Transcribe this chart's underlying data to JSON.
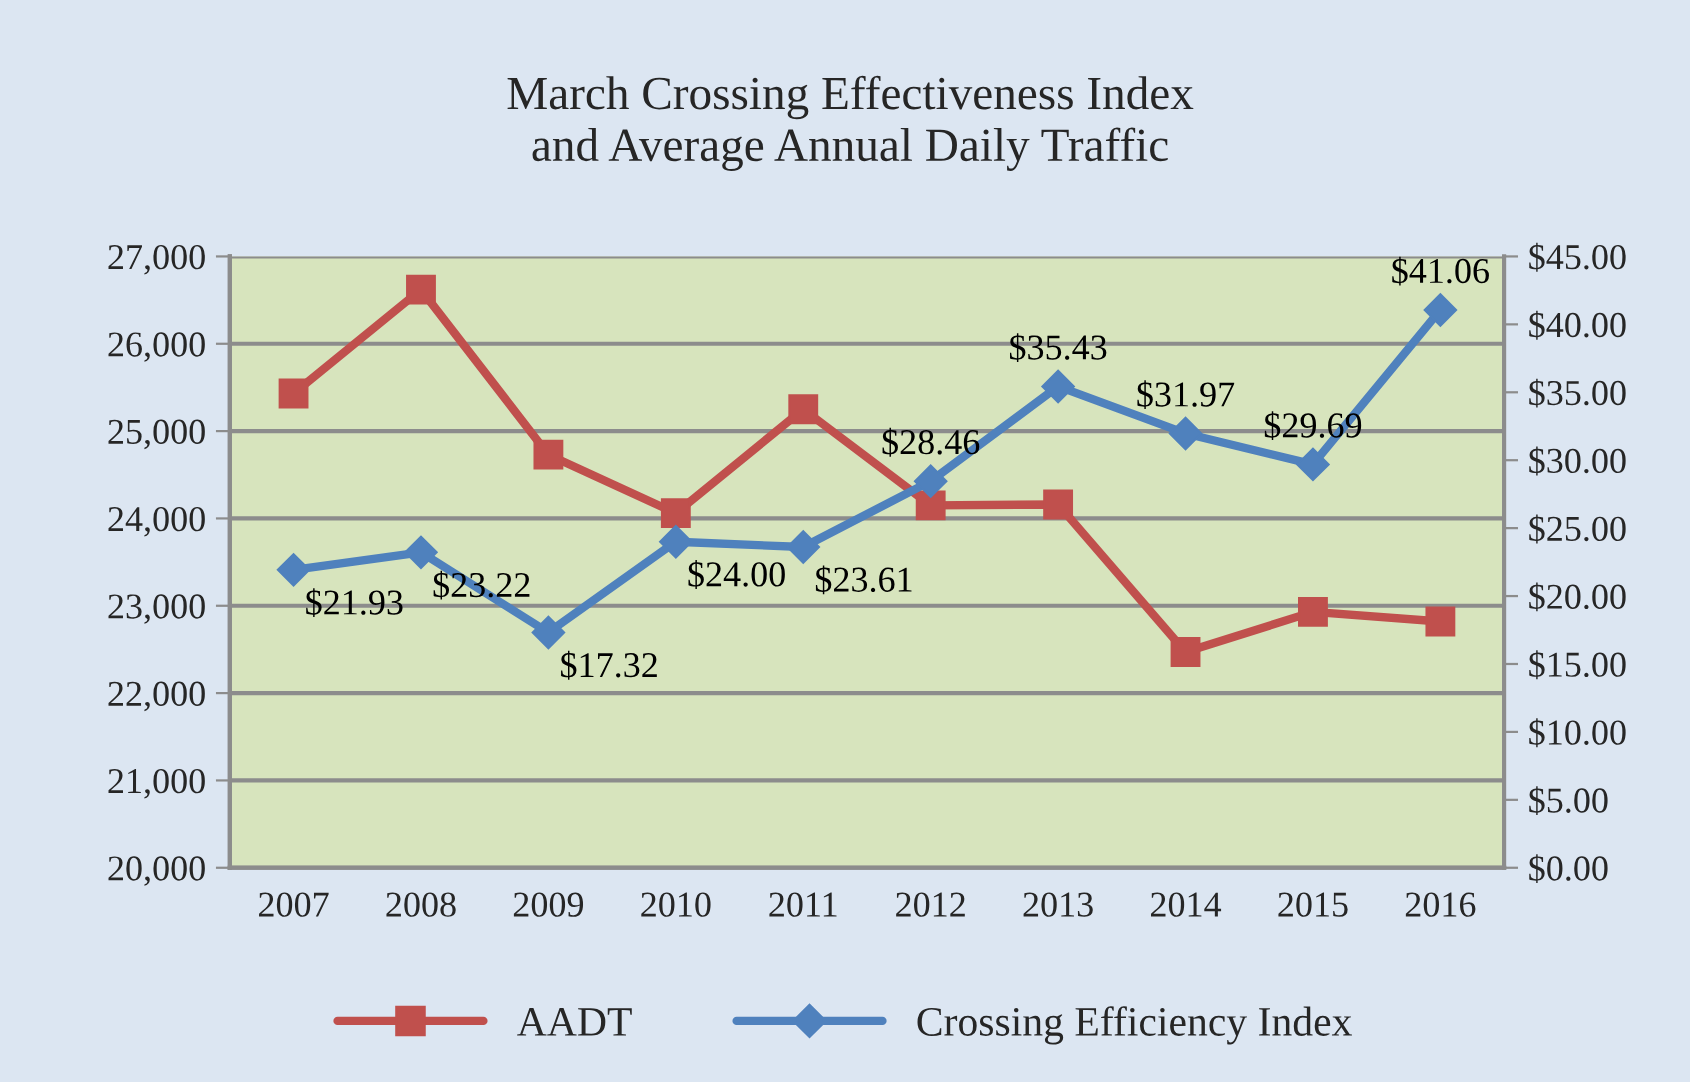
{
  "chart_data": {
    "type": "line",
    "title": "March Crossing Effectiveness Index\nand Average Annual Daily Traffic",
    "categories": [
      "2007",
      "2008",
      "2009",
      "2010",
      "2011",
      "2012",
      "2013",
      "2014",
      "2015",
      "2016"
    ],
    "series": [
      {
        "name": "AADT",
        "color": "#c0504d",
        "marker": "square",
        "values": [
          25430,
          26620,
          24730,
          24060,
          25250,
          24150,
          24160,
          22470,
          22930,
          22820
        ]
      },
      {
        "name": "Crossing Efficiency Index",
        "color": "#4f81bd",
        "marker": "diamond",
        "axis": "y2",
        "values": [
          21.93,
          23.22,
          17.32,
          24.0,
          23.61,
          28.46,
          35.43,
          31.97,
          29.69,
          41.06
        ],
        "value_labels": [
          "$21.93",
          "$23.22",
          "$17.32",
          "$24.00",
          "$23.61",
          "$28.46",
          "$35.43",
          "$31.97",
          "$29.69",
          "$41.06"
        ]
      }
    ],
    "ylim": [
      20000,
      27000
    ],
    "yticks": [
      {
        "value": 20000,
        "label": "20,000"
      },
      {
        "value": 21000,
        "label": "21,000"
      },
      {
        "value": 22000,
        "label": "22,000"
      },
      {
        "value": 23000,
        "label": "23,000"
      },
      {
        "value": 24000,
        "label": "24,000"
      },
      {
        "value": 25000,
        "label": "25,000"
      },
      {
        "value": 26000,
        "label": "26,000"
      },
      {
        "value": 27000,
        "label": "27,000"
      }
    ],
    "y2lim": [
      0,
      45
    ],
    "y2ticks": [
      {
        "value": 0,
        "label": "$0.00"
      },
      {
        "value": 5,
        "label": "$5.00"
      },
      {
        "value": 10,
        "label": "$10.00"
      },
      {
        "value": 15,
        "label": "$15.00"
      },
      {
        "value": 20,
        "label": "$20.00"
      },
      {
        "value": 25,
        "label": "$25.00"
      },
      {
        "value": 30,
        "label": "$30.00"
      },
      {
        "value": 35,
        "label": "$35.00"
      },
      {
        "value": 40,
        "label": "$40.00"
      },
      {
        "value": 45,
        "label": "$45.00"
      }
    ],
    "grid": "y",
    "legend": "bottom",
    "line_style": "solid"
  }
}
